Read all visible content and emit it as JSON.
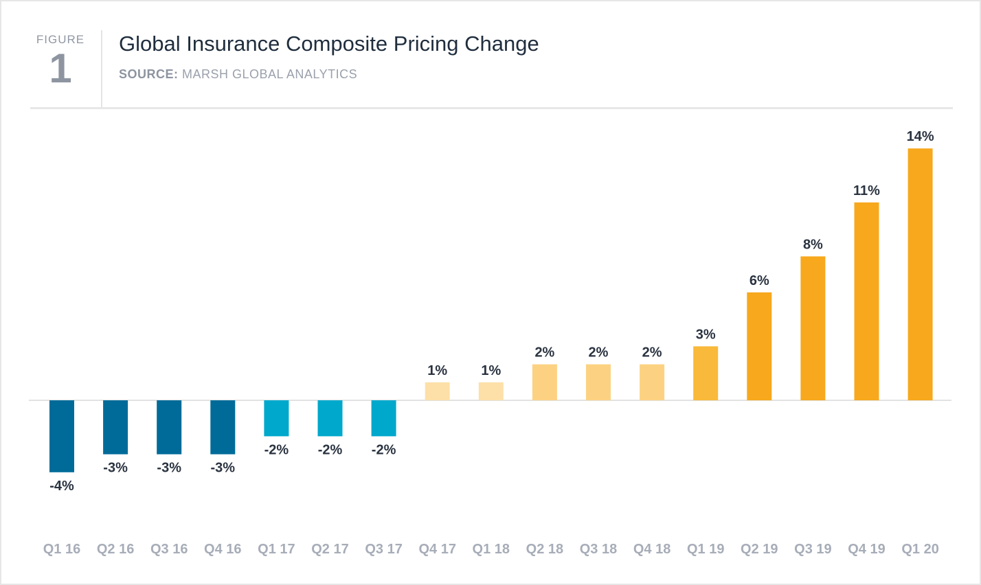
{
  "figure": {
    "label": "FIGURE",
    "number": "1",
    "title": "Global Insurance Composite Pricing Change",
    "source_key": "SOURCE:",
    "source_value": " MARSH GLOBAL ANALYTICS"
  },
  "chart_data": {
    "type": "bar",
    "title": "Global Insurance Composite Pricing Change",
    "xlabel": "",
    "ylabel": "",
    "categories": [
      "Q1 16",
      "Q2 16",
      "Q3 16",
      "Q4 16",
      "Q1 17",
      "Q2 17",
      "Q3 17",
      "Q4 17",
      "Q1 18",
      "Q2 18",
      "Q3 18",
      "Q4 18",
      "Q1 19",
      "Q2 19",
      "Q3 19",
      "Q4 19",
      "Q1 20"
    ],
    "values": [
      -4,
      -3,
      -3,
      -3,
      -2,
      -2,
      -2,
      1,
      1,
      2,
      2,
      2,
      3,
      6,
      8,
      11,
      14
    ],
    "value_labels": [
      "-4%",
      "-3%",
      "-3%",
      "-3%",
      "-2%",
      "-2%",
      "-2%",
      "1%",
      "1%",
      "2%",
      "2%",
      "2%",
      "3%",
      "6%",
      "8%",
      "11%",
      "14%"
    ],
    "ylim": [
      -5,
      15
    ],
    "grid": false,
    "legend": "none",
    "colors": {
      "deep_blue": "#006b99",
      "teal": "#00a8cc",
      "pale_gold": "#fde0a8",
      "light_gold": "#fcd282",
      "mid_gold": "#f9b93a",
      "gold": "#f7a81d",
      "baseline": "#d9d9d9"
    },
    "bar_colors": [
      "deep_blue",
      "deep_blue",
      "deep_blue",
      "deep_blue",
      "teal",
      "teal",
      "teal",
      "pale_gold",
      "pale_gold",
      "light_gold",
      "light_gold",
      "light_gold",
      "mid_gold",
      "gold",
      "gold",
      "gold",
      "gold"
    ]
  }
}
